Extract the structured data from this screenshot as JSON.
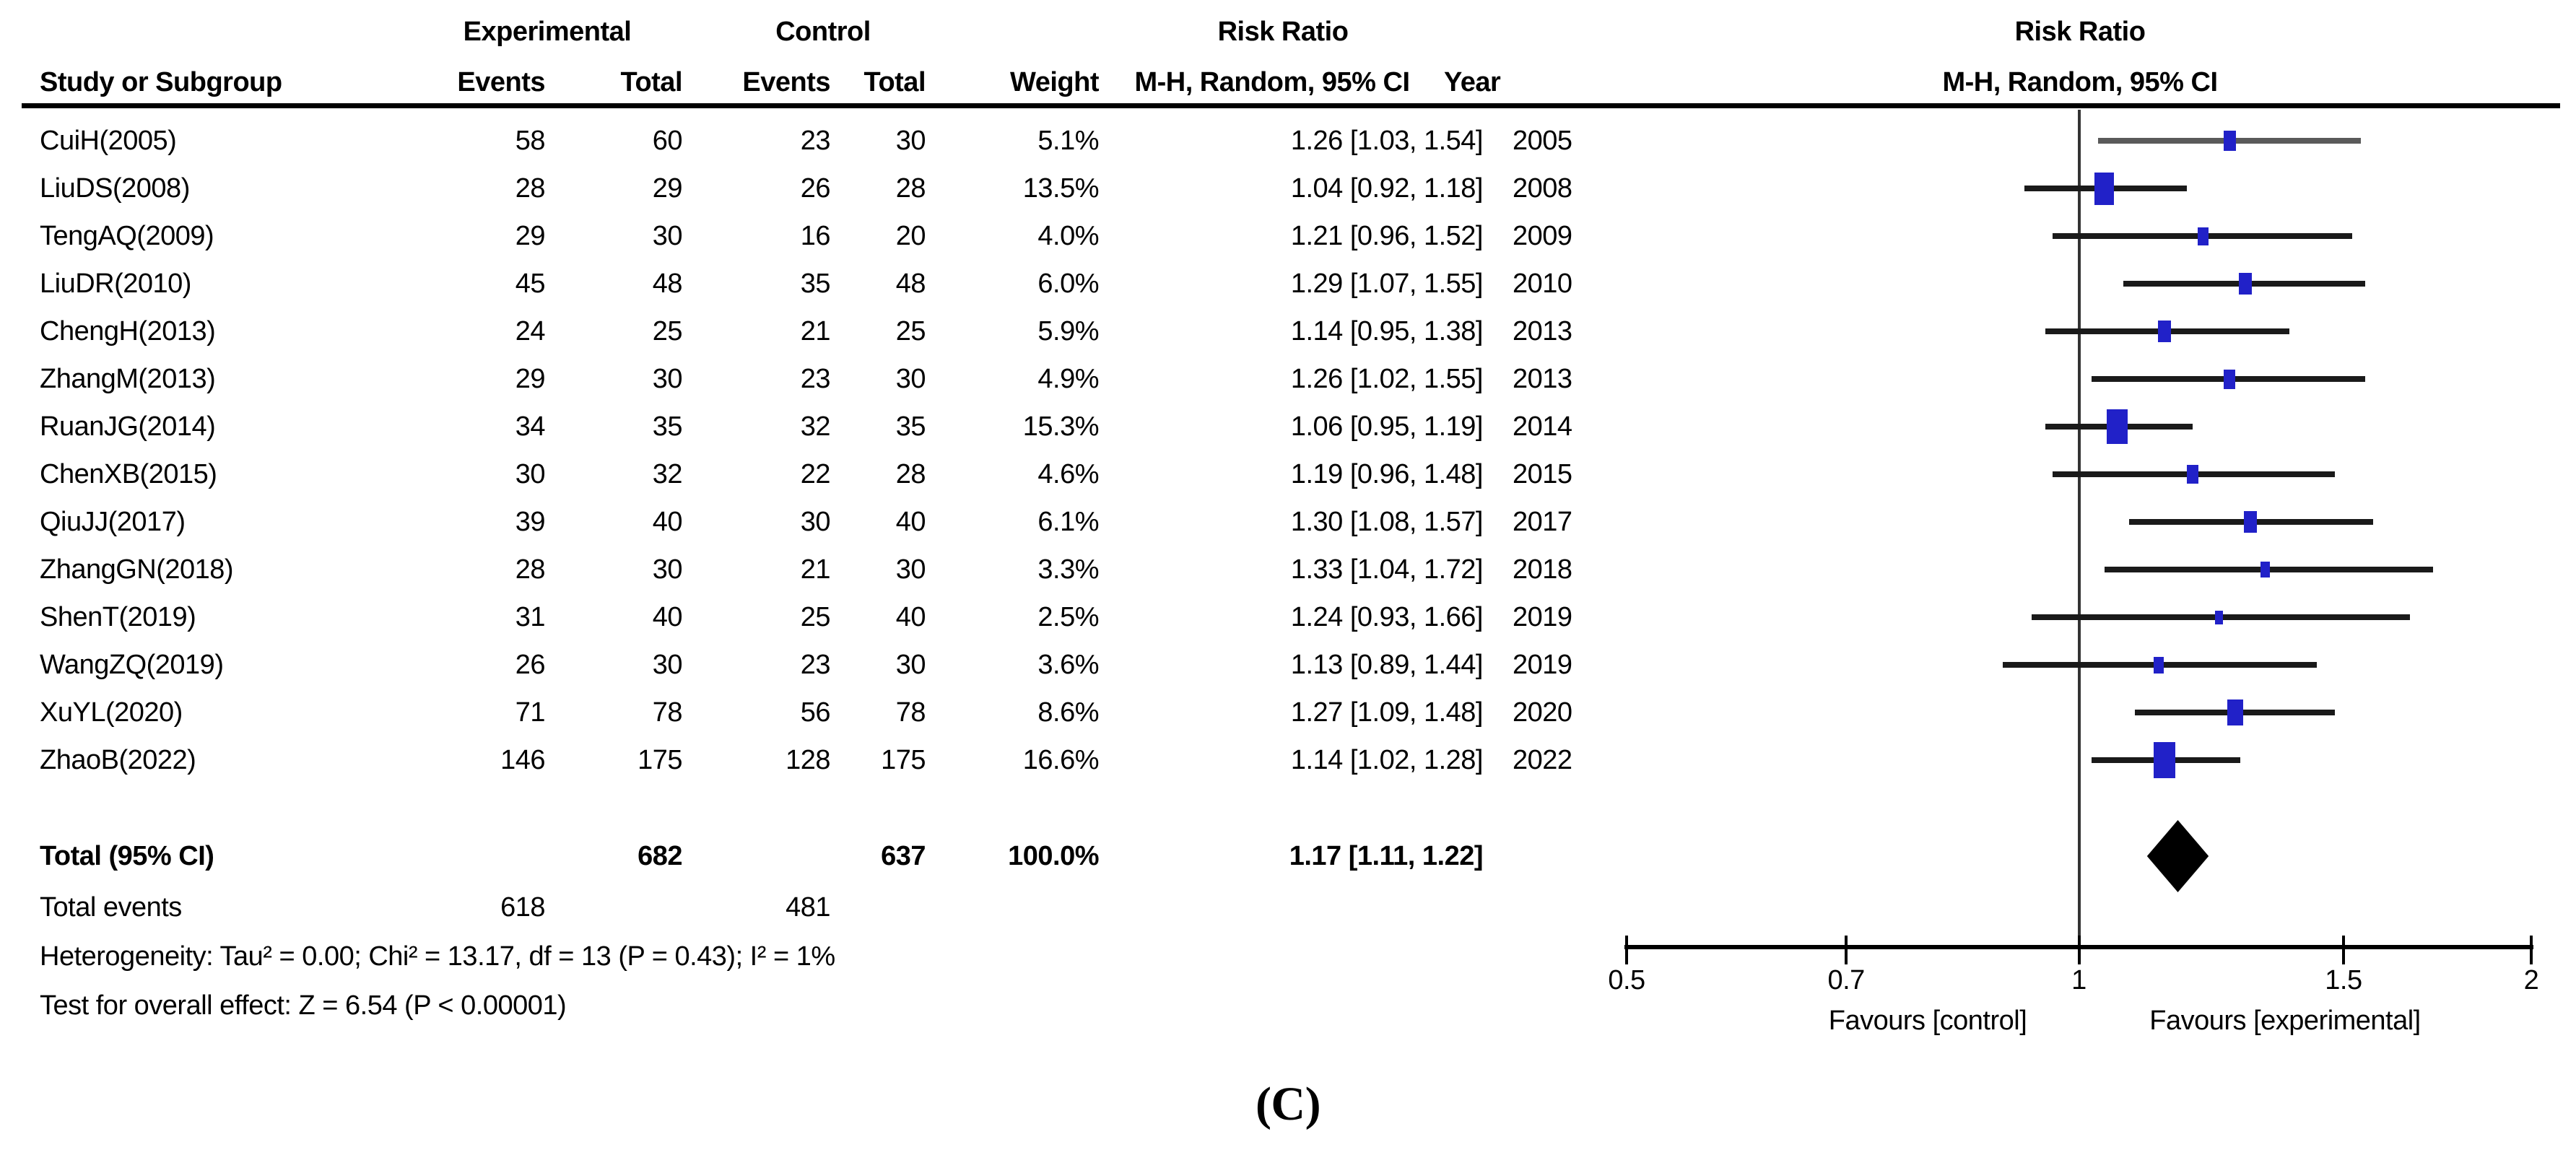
{
  "caption": "(C)",
  "table_header": {
    "experimental": "Experimental",
    "control": "Control",
    "risk_ratio": "Risk Ratio",
    "study_or_subgroup": "Study or Subgroup",
    "events": "Events",
    "total": "Total",
    "weight": "Weight",
    "method_ci": "M-H, Random, 95% CI",
    "year": "Year"
  },
  "plot_header": {
    "risk_ratio": "Risk Ratio",
    "method_ci": "M-H, Random, 95% CI"
  },
  "colors": {
    "marker": "#2121c8",
    "diamond": "#000000",
    "ci_line": "#1a1a1a",
    "first_study_ci_line": "#5a5a5a",
    "axis": "#000000"
  },
  "chart_data": {
    "type": "forest",
    "effect_measure": "Risk Ratio",
    "model": "M-H, Random, 95% CI",
    "x_scale": "log",
    "xlim": [
      0.5,
      2
    ],
    "x_tick_labels": [
      "0.5",
      "0.7",
      "1",
      "1.5",
      "2"
    ],
    "x_ticks": [
      0.5,
      0.7,
      1,
      1.5,
      2
    ],
    "favours_left": "Favours [control]",
    "favours_right": "Favours [experimental]",
    "studies": [
      {
        "name": "CuiH(2005)",
        "exp_events": "58",
        "exp_total": "60",
        "ctrl_events": "23",
        "ctrl_total": "30",
        "weight": "5.1%",
        "rr_ci_text": "1.26 [1.03, 1.54]",
        "year": "2005",
        "rr": 1.26,
        "ci_low": 1.03,
        "ci_high": 1.54
      },
      {
        "name": "LiuDS(2008)",
        "exp_events": "28",
        "exp_total": "29",
        "ctrl_events": "26",
        "ctrl_total": "28",
        "weight": "13.5%",
        "rr_ci_text": "1.04 [0.92, 1.18]",
        "year": "2008",
        "rr": 1.04,
        "ci_low": 0.92,
        "ci_high": 1.18
      },
      {
        "name": "TengAQ(2009)",
        "exp_events": "29",
        "exp_total": "30",
        "ctrl_events": "16",
        "ctrl_total": "20",
        "weight": "4.0%",
        "rr_ci_text": "1.21 [0.96, 1.52]",
        "year": "2009",
        "rr": 1.21,
        "ci_low": 0.96,
        "ci_high": 1.52
      },
      {
        "name": "LiuDR(2010)",
        "exp_events": "45",
        "exp_total": "48",
        "ctrl_events": "35",
        "ctrl_total": "48",
        "weight": "6.0%",
        "rr_ci_text": "1.29 [1.07, 1.55]",
        "year": "2010",
        "rr": 1.29,
        "ci_low": 1.07,
        "ci_high": 1.55
      },
      {
        "name": "ChengH(2013)",
        "exp_events": "24",
        "exp_total": "25",
        "ctrl_events": "21",
        "ctrl_total": "25",
        "weight": "5.9%",
        "rr_ci_text": "1.14 [0.95, 1.38]",
        "year": "2013",
        "rr": 1.14,
        "ci_low": 0.95,
        "ci_high": 1.38
      },
      {
        "name": "ZhangM(2013)",
        "exp_events": "29",
        "exp_total": "30",
        "ctrl_events": "23",
        "ctrl_total": "30",
        "weight": "4.9%",
        "rr_ci_text": "1.26 [1.02, 1.55]",
        "year": "2013",
        "rr": 1.26,
        "ci_low": 1.02,
        "ci_high": 1.55
      },
      {
        "name": "RuanJG(2014)",
        "exp_events": "34",
        "exp_total": "35",
        "ctrl_events": "32",
        "ctrl_total": "35",
        "weight": "15.3%",
        "rr_ci_text": "1.06 [0.95, 1.19]",
        "year": "2014",
        "rr": 1.06,
        "ci_low": 0.95,
        "ci_high": 1.19
      },
      {
        "name": "ChenXB(2015)",
        "exp_events": "30",
        "exp_total": "32",
        "ctrl_events": "22",
        "ctrl_total": "28",
        "weight": "4.6%",
        "rr_ci_text": "1.19 [0.96, 1.48]",
        "year": "2015",
        "rr": 1.19,
        "ci_low": 0.96,
        "ci_high": 1.48
      },
      {
        "name": "QiuJJ(2017)",
        "exp_events": "39",
        "exp_total": "40",
        "ctrl_events": "30",
        "ctrl_total": "40",
        "weight": "6.1%",
        "rr_ci_text": "1.30 [1.08, 1.57]",
        "year": "2017",
        "rr": 1.3,
        "ci_low": 1.08,
        "ci_high": 1.57
      },
      {
        "name": "ZhangGN(2018)",
        "exp_events": "28",
        "exp_total": "30",
        "ctrl_events": "21",
        "ctrl_total": "30",
        "weight": "3.3%",
        "rr_ci_text": "1.33 [1.04, 1.72]",
        "year": "2018",
        "rr": 1.33,
        "ci_low": 1.04,
        "ci_high": 1.72
      },
      {
        "name": "ShenT(2019)",
        "exp_events": "31",
        "exp_total": "40",
        "ctrl_events": "25",
        "ctrl_total": "40",
        "weight": "2.5%",
        "rr_ci_text": "1.24 [0.93, 1.66]",
        "year": "2019",
        "rr": 1.24,
        "ci_low": 0.93,
        "ci_high": 1.66
      },
      {
        "name": "WangZQ(2019)",
        "exp_events": "26",
        "exp_total": "30",
        "ctrl_events": "23",
        "ctrl_total": "30",
        "weight": "3.6%",
        "rr_ci_text": "1.13 [0.89, 1.44]",
        "year": "2019",
        "rr": 1.13,
        "ci_low": 0.89,
        "ci_high": 1.44
      },
      {
        "name": "XuYL(2020)",
        "exp_events": "71",
        "exp_total": "78",
        "ctrl_events": "56",
        "ctrl_total": "78",
        "weight": "8.6%",
        "rr_ci_text": "1.27 [1.09, 1.48]",
        "year": "2020",
        "rr": 1.27,
        "ci_low": 1.09,
        "ci_high": 1.48
      },
      {
        "name": "ZhaoB(2022)",
        "exp_events": "146",
        "exp_total": "175",
        "ctrl_events": "128",
        "ctrl_total": "175",
        "weight": "16.6%",
        "rr_ci_text": "1.14 [1.02, 1.28]",
        "year": "2022",
        "rr": 1.14,
        "ci_low": 1.02,
        "ci_high": 1.28
      }
    ],
    "total": {
      "label": "Total (95% CI)",
      "exp_total": "682",
      "ctrl_total": "637",
      "weight": "100.0%",
      "rr_ci_text": "1.17 [1.11, 1.22]",
      "rr": 1.17,
      "ci_low": 1.11,
      "ci_high": 1.22
    },
    "total_events": {
      "label": "Total events",
      "experimental": "618",
      "control": "481"
    },
    "heterogeneity": "Heterogeneity: Tau² = 0.00; Chi² = 13.17, df = 13 (P = 0.43); I² = 1%",
    "overall_effect": "Test for overall effect: Z = 6.54 (P < 0.00001)"
  }
}
